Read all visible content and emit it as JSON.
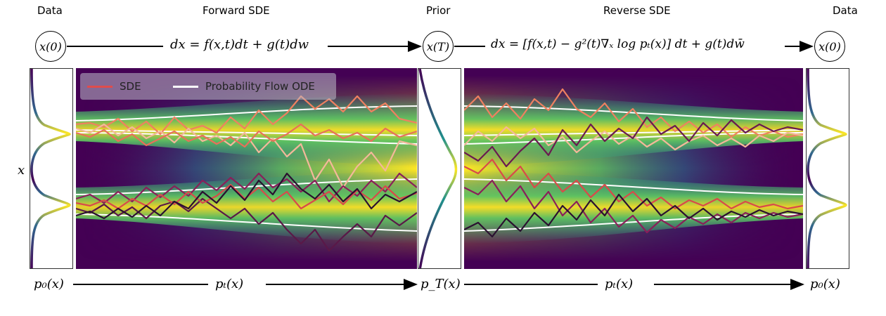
{
  "top": {
    "data_left": "Data",
    "forward_sde": "Forward SDE",
    "prior": "Prior",
    "reverse_sde": "Reverse SDE",
    "data_right": "Data"
  },
  "nodes": {
    "x0_left": "x(0)",
    "xT": "x(T)",
    "x0_right": "x(0)"
  },
  "equations": {
    "forward": "dx = f(x,t)dt + g(t)dw",
    "reverse": "dx = [f(x,t) − g²(t)∇ₓ log pₜ(x)] dt + g(t)dw̄"
  },
  "axis": {
    "y_label": "x"
  },
  "legend": {
    "sde": "SDE",
    "ode": "Probability Flow ODE"
  },
  "bottom": {
    "p0_left": "p₀(x)",
    "pt_forward": "pₜ(x)",
    "pT": "p_T(x)",
    "pt_reverse": "pₜ(x)",
    "p0_right": "p₀(x)"
  },
  "colors": {
    "viridis_dark": "#440154",
    "viridis_mid": "#21918c",
    "viridis_yellow": "#fde725",
    "sde_line": "#e04c4c",
    "ode_line": "#ffffff"
  }
}
